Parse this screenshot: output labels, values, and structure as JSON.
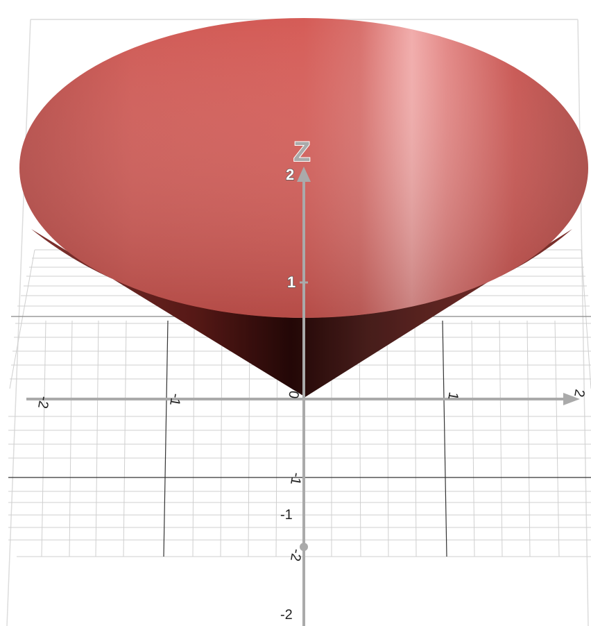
{
  "graph": {
    "surface_label": "cone surface",
    "colors": {
      "surface": "#d35c57",
      "surface_dark": "#2a0a09",
      "surface_highlight": "#f3b1b1",
      "axis": "#aaaaaa",
      "grid_minor": "#cfcfcf",
      "grid_major": "#222222",
      "box": "#dcdcdc"
    },
    "z_axis": {
      "name": "Z",
      "tick_labels": [
        "2",
        "1",
        "-1",
        "-2"
      ]
    },
    "x_axis": {
      "tick_labels": [
        "-2",
        "-1",
        "0",
        "1",
        "2"
      ]
    },
    "y_axis": {
      "tick_labels": [
        "-1",
        "-2"
      ]
    }
  }
}
